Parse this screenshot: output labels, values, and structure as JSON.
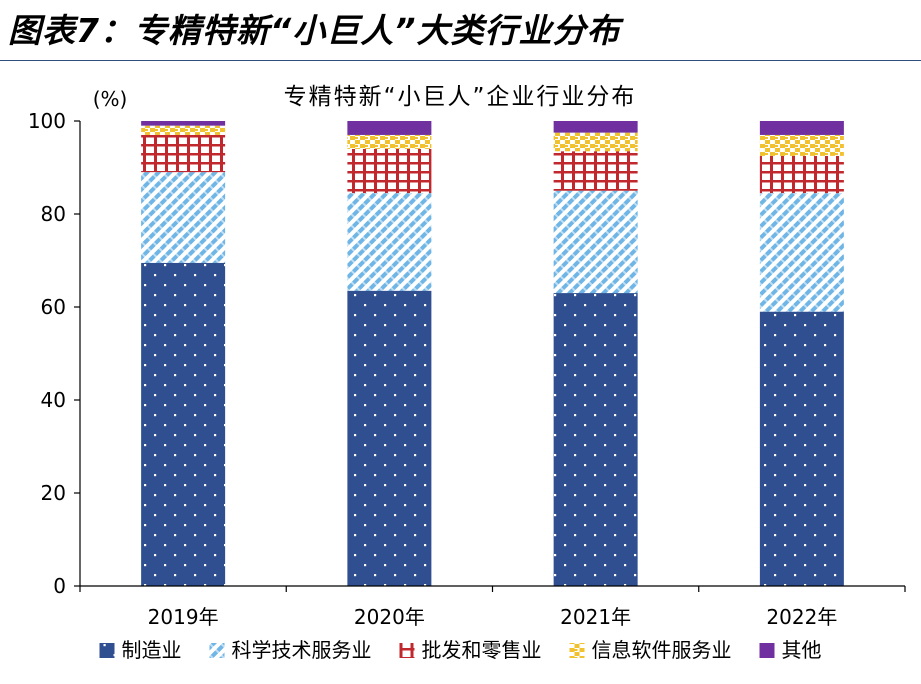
{
  "figure_title": "图表7：专精特新“小巨人”大类行业分布",
  "chart_data": {
    "type": "bar",
    "stacked": true,
    "title": "专精特新“小巨人”企业行业分布",
    "ylabel": "(%)",
    "xlabel": "",
    "ylim": [
      0,
      100
    ],
    "yticks": [
      0,
      20,
      40,
      60,
      80,
      100
    ],
    "grid": false,
    "legend_position": "bottom",
    "categories": [
      "2019年",
      "2020年",
      "2021年",
      "2022年"
    ],
    "series": [
      {
        "name": "制造业",
        "values": [
          69.5,
          63.5,
          63.0,
          59.0
        ],
        "color": "#2f4f91",
        "pattern": "dots"
      },
      {
        "name": "科学技术服务业",
        "values": [
          19.5,
          21.0,
          22.0,
          25.5
        ],
        "color": "#6fb5e5",
        "pattern": "diagonal"
      },
      {
        "name": "批发和零售业",
        "values": [
          8.0,
          9.5,
          8.5,
          8.0
        ],
        "color": "#c0282d",
        "pattern": "grid"
      },
      {
        "name": "信息软件服务业",
        "values": [
          2.0,
          3.0,
          4.0,
          4.5
        ],
        "color": "#f2c12e",
        "pattern": "checker"
      },
      {
        "name": "其他",
        "values": [
          1.0,
          3.0,
          2.5,
          3.0
        ],
        "color": "#7030a0",
        "pattern": "solid"
      }
    ]
  }
}
